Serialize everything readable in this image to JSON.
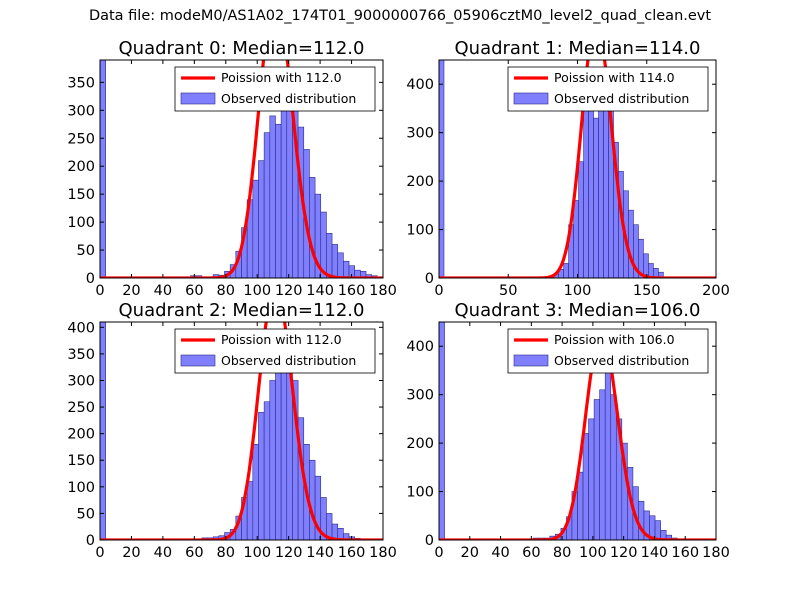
{
  "figure": {
    "suptitle": "Data file: modeM0/AS1A02_174T01_9000000766_05906cztM0_level2_quad_clean.evt"
  },
  "colors": {
    "bar_fill": "#8080ff",
    "bar_edge": "#2a2a88",
    "poisson_line": "#ff0000",
    "legend_edge": "#000000"
  },
  "chart_data": [
    {
      "type": "bar",
      "title": "Quadrant 0: Median=112.0",
      "xlim": [
        0,
        180
      ],
      "ylim": [
        0,
        390
      ],
      "xticks": [
        0,
        20,
        40,
        60,
        80,
        100,
        120,
        140,
        160,
        180
      ],
      "yticks": [
        0,
        50,
        100,
        150,
        200,
        250,
        300,
        350
      ],
      "legend": {
        "placement": "top-right",
        "line_label": "Poission with 112.0",
        "bar_label": "Observed distribution"
      },
      "poisson_mean": 112.0,
      "bin_width": 3.6,
      "first_bar_value": 390,
      "bin_start": 57.6,
      "values": [
        4,
        4,
        2,
        2,
        6,
        5,
        12,
        24,
        48,
        90,
        140,
        175,
        210,
        260,
        290,
        275,
        310,
        330,
        300,
        270,
        230,
        180,
        150,
        118,
        80,
        60,
        45,
        30,
        22,
        14,
        12,
        6,
        4,
        2
      ]
    },
    {
      "type": "bar",
      "title": "Quadrant 1: Median=114.0",
      "xlim": [
        0,
        200
      ],
      "ylim": [
        0,
        450
      ],
      "xticks": [
        0,
        50,
        100,
        150,
        200
      ],
      "yticks": [
        0,
        100,
        200,
        300,
        400
      ],
      "legend": {
        "placement": "top-right",
        "line_label": "Poission with 114.0",
        "bar_label": "Observed distribution"
      },
      "poisson_mean": 114.0,
      "bin_width": 3.6,
      "first_bar_value": 450,
      "bin_start": 79.2,
      "values": [
        4,
        8,
        18,
        30,
        110,
        160,
        240,
        380,
        350,
        330,
        420,
        390,
        360,
        280,
        220,
        180,
        140,
        110,
        80,
        50,
        30,
        20,
        12
      ]
    },
    {
      "type": "bar",
      "title": "Quadrant 2: Median=112.0",
      "xlim": [
        0,
        180
      ],
      "ylim": [
        0,
        410
      ],
      "xticks": [
        0,
        20,
        40,
        60,
        80,
        100,
        120,
        140,
        160,
        180
      ],
      "yticks": [
        0,
        50,
        100,
        150,
        200,
        250,
        300,
        350,
        400
      ],
      "legend": {
        "placement": "top-right",
        "line_label": "Poission with 112.0",
        "bar_label": "Observed distribution"
      },
      "poisson_mean": 112.0,
      "bin_width": 3.6,
      "first_bar_value": 410,
      "bin_start": 64.8,
      "values": [
        4,
        4,
        6,
        8,
        14,
        20,
        45,
        80,
        110,
        180,
        240,
        260,
        300,
        320,
        380,
        370,
        300,
        230,
        180,
        150,
        120,
        80,
        50,
        30,
        22,
        12,
        6,
        3
      ]
    },
    {
      "type": "bar",
      "title": "Quadrant 3: Median=106.0",
      "xlim": [
        0,
        180
      ],
      "ylim": [
        0,
        450
      ],
      "xticks": [
        0,
        20,
        40,
        60,
        80,
        100,
        120,
        140,
        160,
        180
      ],
      "yticks": [
        0,
        100,
        200,
        300,
        400
      ],
      "legend": {
        "placement": "top-right",
        "line_label": "Poission with 106.0",
        "bar_label": "Observed distribution"
      },
      "poisson_mean": 106.0,
      "bin_width": 3.6,
      "first_bar_value": 450,
      "bin_start": 61.2,
      "values": [
        4,
        4,
        4,
        8,
        12,
        24,
        48,
        100,
        140,
        220,
        250,
        290,
        310,
        380,
        300,
        250,
        200,
        150,
        110,
        80,
        60,
        50,
        40,
        20,
        10,
        4
      ]
    }
  ]
}
